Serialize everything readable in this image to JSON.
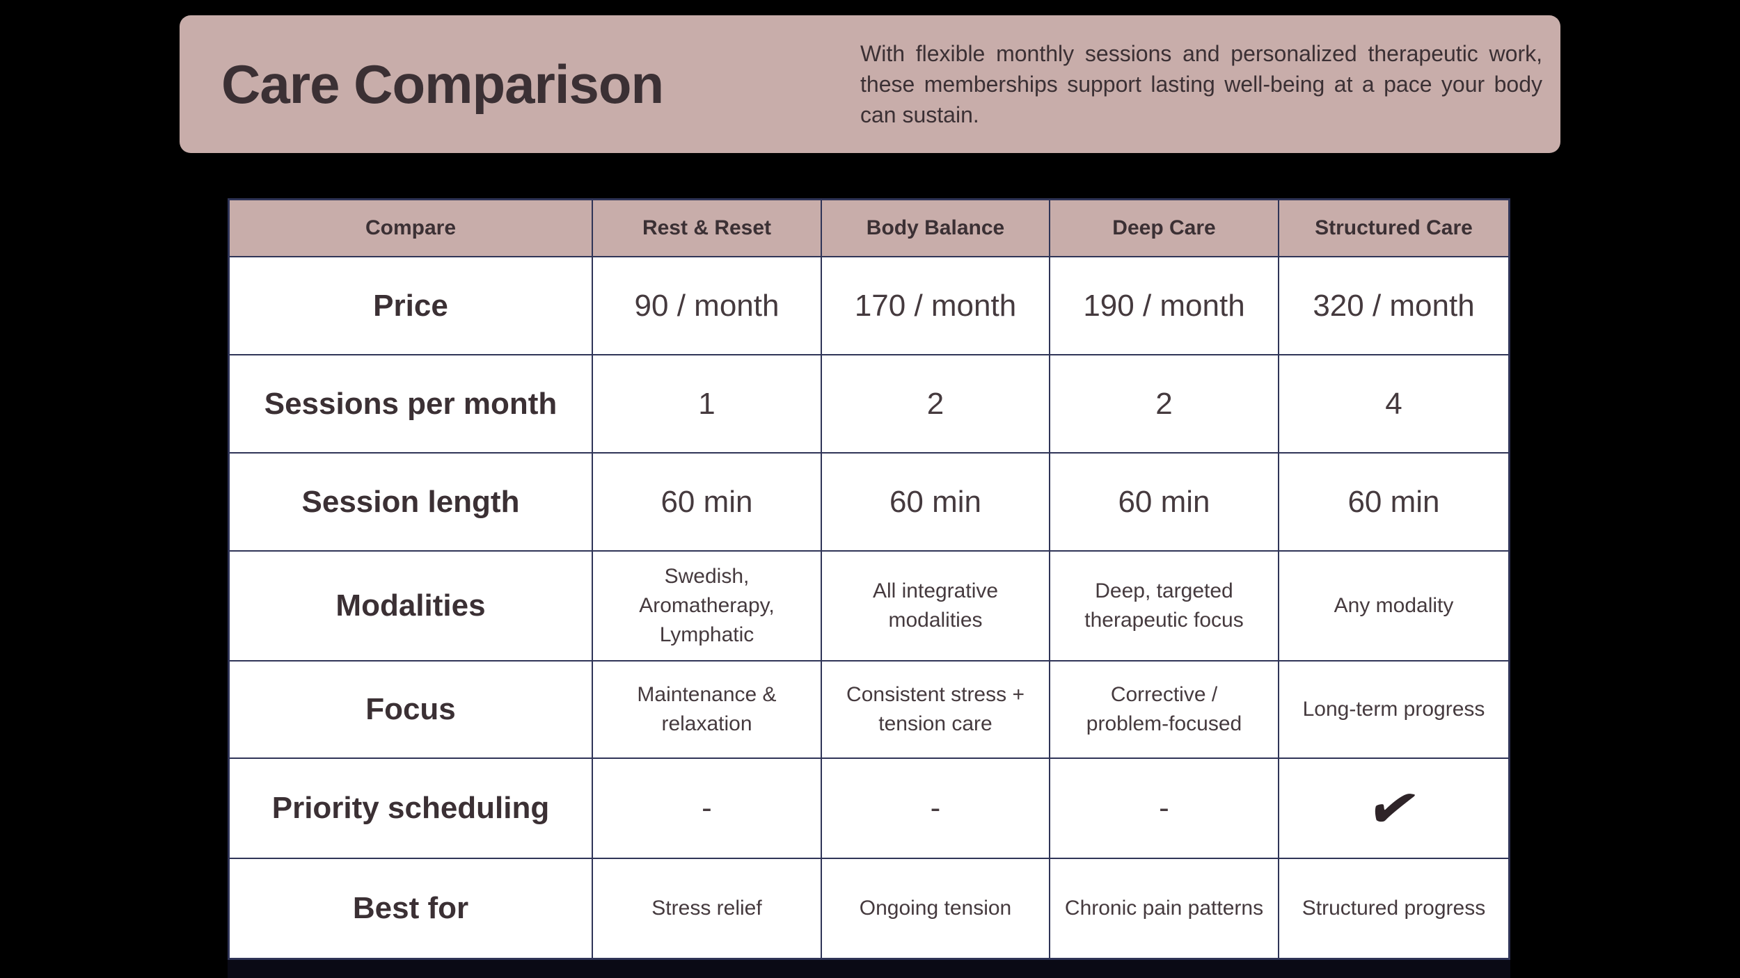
{
  "header": {
    "title": "Care Comparison",
    "description": "With flexible monthly sessions and personalized therapeutic work, these memberships support lasting well-being at a pace your body can sustain.",
    "background": "#c8adaa",
    "text_color": "#3b3034"
  },
  "table": {
    "border_color": "#2f3457",
    "header_background": "#c8adaa",
    "row_background": "#ffffff",
    "columns": [
      "Compare",
      "Rest & Reset",
      "Body Balance",
      "Deep Care",
      "Structured Care"
    ],
    "rows": [
      {
        "label": "Price",
        "values": [
          "90 / month",
          "170 / month",
          "190 / month",
          "320 / month"
        ]
      },
      {
        "label": "Sessions per month",
        "values": [
          "1",
          "2",
          "2",
          "4"
        ]
      },
      {
        "label": "Session length",
        "values": [
          "60 min",
          "60 min",
          "60 min",
          "60 min"
        ]
      },
      {
        "label": "Modalities",
        "values": [
          "Swedish, Aromatherapy, Lymphatic",
          "All integrative modalities",
          "Deep, targeted therapeutic focus",
          "Any modality"
        ]
      },
      {
        "label": "Focus",
        "values": [
          "Maintenance & relaxation",
          "Consistent stress + tension care",
          "Corrective / problem-focused",
          "Long-term progress"
        ]
      },
      {
        "label": "Priority scheduling",
        "values": [
          "-",
          "-",
          "-",
          "✔"
        ]
      },
      {
        "label": "Best for",
        "values": [
          "Stress relief",
          "Ongoing tension",
          "Chronic pain patterns",
          "Structured progress"
        ]
      }
    ]
  },
  "chart_data": {
    "type": "table",
    "title": "Care Comparison",
    "columns": [
      "Compare",
      "Rest & Reset",
      "Body Balance",
      "Deep Care",
      "Structured Care"
    ],
    "rows": [
      [
        "Price",
        "90 / month",
        "170 / month",
        "190 / month",
        "320 / month"
      ],
      [
        "Sessions per month",
        "1",
        "2",
        "2",
        "4"
      ],
      [
        "Session length",
        "60 min",
        "60 min",
        "60 min",
        "60 min"
      ],
      [
        "Modalities",
        "Swedish, Aromatherapy, Lymphatic",
        "All integrative modalities",
        "Deep, targeted therapeutic focus",
        "Any modality"
      ],
      [
        "Focus",
        "Maintenance & relaxation",
        "Consistent stress + tension care",
        "Corrective / problem-focused",
        "Long-term progress"
      ],
      [
        "Priority scheduling",
        "-",
        "-",
        "-",
        "checkmark"
      ],
      [
        "Best for",
        "Stress relief",
        "Ongoing tension",
        "Chronic pain patterns",
        "Structured progress"
      ]
    ]
  }
}
